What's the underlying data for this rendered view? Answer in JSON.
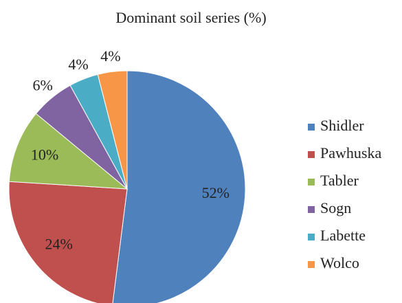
{
  "chart_data": {
    "type": "pie",
    "title": "Dominant soil series (%)",
    "categories": [
      "Shidler",
      "Pawhuska",
      "Tabler",
      "Sogn",
      "Labette",
      "Wolco"
    ],
    "values": [
      52,
      24,
      10,
      6,
      4,
      4
    ],
    "value_labels": [
      "52%",
      "24%",
      "10%",
      "6%",
      "4%",
      "4%"
    ],
    "colors": [
      "#4f81bd",
      "#c0504d",
      "#9bbb59",
      "#8064a2",
      "#4bacc6",
      "#f79646"
    ],
    "legend": "right"
  }
}
